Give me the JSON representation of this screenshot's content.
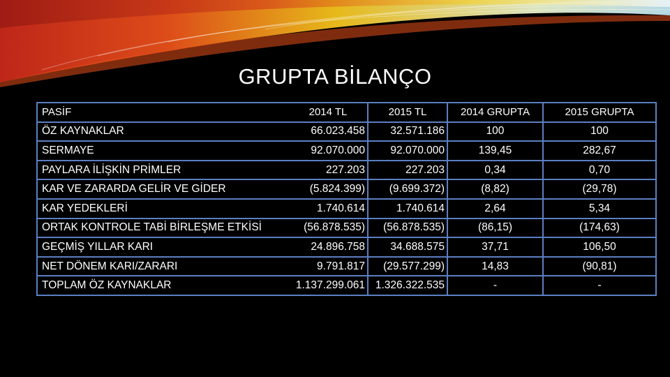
{
  "title": "GRUPTA BİLANÇO",
  "table": {
    "headers": [
      "PASİF",
      "2014 TL",
      "2015 TL",
      "2014 GRUPTA",
      "2015 GRUPTA"
    ],
    "rows": [
      [
        "ÖZ KAYNAKLAR",
        "66.023.458",
        "32.571.186",
        "100",
        "100"
      ],
      [
        "SERMAYE",
        "92.070.000",
        "92.070.000",
        "139,45",
        "282,67"
      ],
      [
        "PAYLARA İLİŞKİN PRİMLER",
        "227.203",
        "227.203",
        "0,34",
        "0,70"
      ],
      [
        "KAR VE ZARARDA GELİR VE GİDER",
        "(5.824.399)",
        "(9.699.372)",
        "(8,82)",
        "(29,78)"
      ],
      [
        "KAR YEDEKLERİ",
        "1.740.614",
        "1.740.614",
        "2,64",
        "5,34"
      ],
      [
        "ORTAK KONTROLE TABİ BİRLEŞME ETKİSİ",
        "(56.878.535)",
        "(56.878.535)",
        "(86,15)",
        "(174,63)"
      ],
      [
        "GEÇMİŞ YILLAR KARI",
        "24.896.758",
        "34.688.575",
        "37,71",
        "106,50"
      ],
      [
        "NET DÖNEM KARI/ZARARI",
        "9.791.817",
        "(29.577.299)",
        "14,83",
        "(90,81)"
      ],
      [
        "TOPLAM ÖZ KAYNAKLAR",
        "1.137.299.061",
        "1.326.322.535",
        "-",
        "-"
      ]
    ]
  },
  "colors": {
    "background": "#000000",
    "border": "#5b7fc2",
    "text": "#ffffff",
    "accent_orange": "#e8501a",
    "accent_yellow": "#f2c21b"
  }
}
